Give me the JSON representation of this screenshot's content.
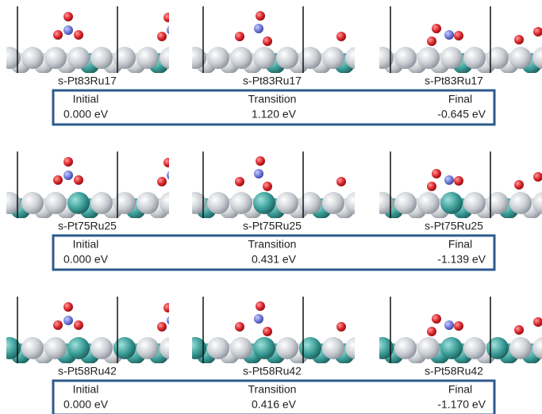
{
  "panels": [
    {
      "labels": [
        "s-Pt83Ru17",
        "s-Pt83Ru17",
        "s-Pt83Ru17"
      ],
      "stages": [
        "Initial",
        "Transition",
        "Final"
      ],
      "energies": [
        "0.000 eV",
        "1.120 eV",
        "-0.645 eV"
      ]
    },
    {
      "labels": [
        "s-Pt75Ru25",
        "s-Pt75Ru25",
        "s-Pt75Ru25"
      ],
      "stages": [
        "Initial",
        "Transition",
        "Final"
      ],
      "energies": [
        "0.000 eV",
        "0.431 eV",
        "-1.139 eV"
      ]
    },
    {
      "labels": [
        "s-Pt58Ru42",
        "s-Pt58Ru42",
        "s-Pt58Ru42"
      ],
      "stages": [
        "Initial",
        "Transition",
        "Final"
      ],
      "energies": [
        "0.000 eV",
        "0.416 eV",
        "-1.170 eV"
      ]
    }
  ]
}
